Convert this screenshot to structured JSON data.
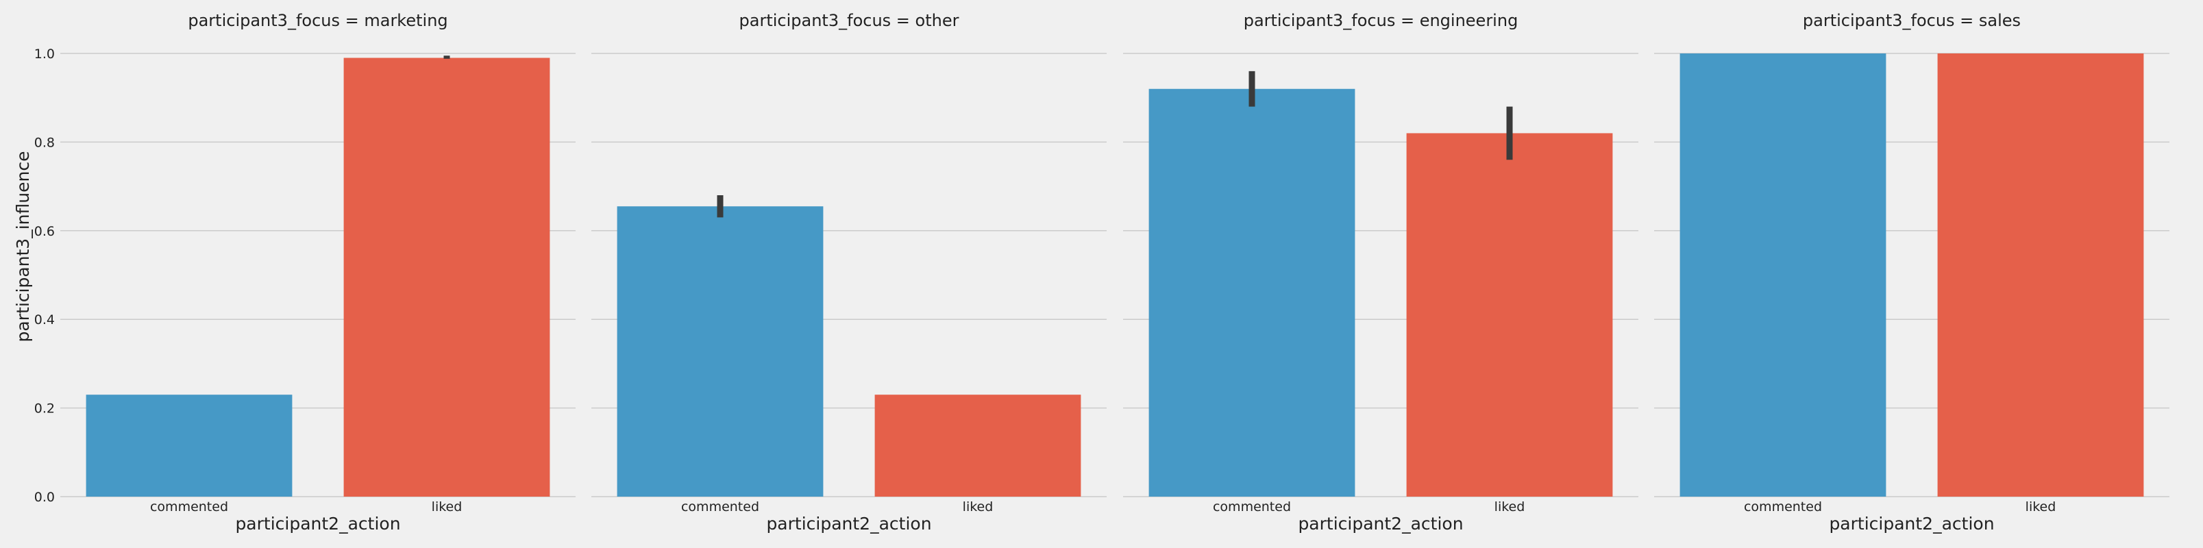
{
  "chart_data": {
    "type": "bar",
    "ylabel": "participant3_influence",
    "xlabel": "participant2_action",
    "ylim": [
      0,
      1.0
    ],
    "yticks": [
      "0.0",
      "0.2",
      "0.4",
      "0.6",
      "0.8",
      "1.0"
    ],
    "categories": [
      "commented",
      "liked"
    ],
    "colors": [
      "#4699c6",
      "#e5604a"
    ],
    "error_color": "#3a3a3a",
    "grid": true,
    "panels": [
      {
        "title": "participant3_focus = marketing",
        "values": [
          0.23,
          0.99
        ],
        "errors": [
          [
            0.23,
            0.23
          ],
          [
            0.988,
            0.995
          ]
        ]
      },
      {
        "title": "participant3_focus = other",
        "values": [
          0.655,
          0.23
        ],
        "errors": [
          [
            0.63,
            0.68
          ],
          [
            0.23,
            0.23
          ]
        ]
      },
      {
        "title": "participant3_focus = engineering",
        "values": [
          0.92,
          0.82
        ],
        "errors": [
          [
            0.88,
            0.96
          ],
          [
            0.76,
            0.88
          ]
        ]
      },
      {
        "title": "participant3_focus = sales",
        "values": [
          1.0,
          1.0
        ],
        "errors": [
          [
            1.0,
            1.0
          ],
          [
            1.0,
            1.0
          ]
        ]
      }
    ]
  }
}
